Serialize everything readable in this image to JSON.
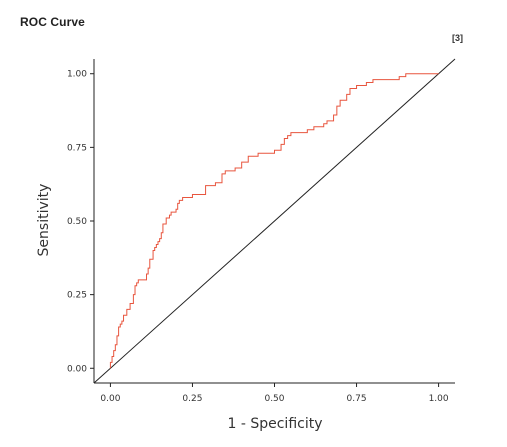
{
  "panel": {
    "title": "ROC Curve",
    "reference_note": "[3]"
  },
  "colors": {
    "roc_line": "#e8553e",
    "diagonal": "#222222",
    "axis": "#222222",
    "text": "#333333"
  },
  "chart_data": {
    "type": "line",
    "title": "",
    "xlabel": "1 - Specificity",
    "ylabel": "Sensitivity",
    "xlim": [
      -0.05,
      1.05
    ],
    "ylim": [
      -0.05,
      1.05
    ],
    "x_ticks": [
      0.0,
      0.25,
      0.5,
      0.75,
      1.0
    ],
    "x_tick_labels": [
      "0.00",
      "0.25",
      "0.50",
      "0.75",
      "1.00"
    ],
    "y_ticks": [
      0.0,
      0.25,
      0.5,
      0.75,
      1.0
    ],
    "y_tick_labels": [
      "0.00",
      "0.25",
      "0.50",
      "0.75",
      "1.00"
    ],
    "grid": false,
    "reference_line": {
      "x": [
        -0.05,
        1.05
      ],
      "y": [
        -0.05,
        1.05
      ]
    },
    "series": [
      {
        "style": "step",
        "x": [
          0.0,
          0.005,
          0.01,
          0.015,
          0.02,
          0.025,
          0.03,
          0.035,
          0.04,
          0.05,
          0.06,
          0.07,
          0.075,
          0.08,
          0.085,
          0.09,
          0.1,
          0.11,
          0.115,
          0.12,
          0.13,
          0.135,
          0.14,
          0.145,
          0.15,
          0.155,
          0.16,
          0.17,
          0.18,
          0.185,
          0.19,
          0.2,
          0.205,
          0.21,
          0.22,
          0.23,
          0.25,
          0.26,
          0.29,
          0.32,
          0.34,
          0.35,
          0.37,
          0.38,
          0.4,
          0.42,
          0.45,
          0.46,
          0.5,
          0.52,
          0.53,
          0.54,
          0.55,
          0.56,
          0.6,
          0.62,
          0.65,
          0.66,
          0.68,
          0.69,
          0.7,
          0.72,
          0.73,
          0.75,
          0.78,
          0.8,
          0.88,
          0.9,
          0.95,
          1.0
        ],
        "y": [
          0.0,
          0.02,
          0.04,
          0.06,
          0.08,
          0.11,
          0.14,
          0.15,
          0.16,
          0.18,
          0.2,
          0.22,
          0.25,
          0.28,
          0.29,
          0.3,
          0.3,
          0.3,
          0.32,
          0.34,
          0.37,
          0.4,
          0.41,
          0.42,
          0.43,
          0.44,
          0.46,
          0.49,
          0.51,
          0.52,
          0.53,
          0.53,
          0.54,
          0.56,
          0.57,
          0.58,
          0.58,
          0.59,
          0.59,
          0.62,
          0.63,
          0.66,
          0.67,
          0.67,
          0.68,
          0.7,
          0.72,
          0.73,
          0.73,
          0.74,
          0.76,
          0.78,
          0.79,
          0.8,
          0.8,
          0.81,
          0.82,
          0.83,
          0.84,
          0.86,
          0.89,
          0.91,
          0.93,
          0.95,
          0.96,
          0.97,
          0.98,
          0.99,
          1.0,
          1.0
        ]
      }
    ]
  }
}
